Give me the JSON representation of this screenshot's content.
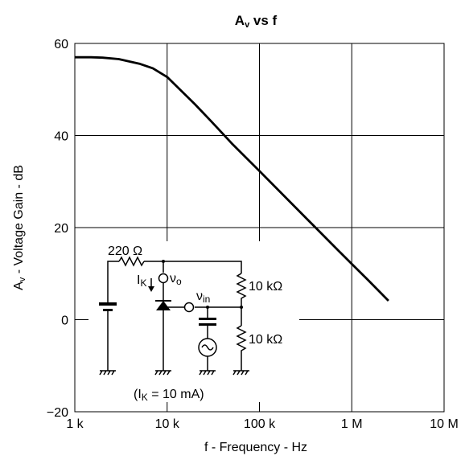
{
  "chart_data": {
    "type": "line",
    "title": "Av vs f",
    "xlabel": "f - Frequency - Hz",
    "ylabel": "Av - Voltage Gain - dB",
    "x_scale": "log",
    "xlim": [
      1000,
      10000000
    ],
    "ylim": [
      -20,
      60
    ],
    "x_ticks": [
      1000,
      10000,
      100000,
      1000000,
      10000000
    ],
    "x_tick_labels": [
      "1 k",
      "10 k",
      "100 k",
      "1 M",
      "10 M"
    ],
    "y_ticks": [
      60,
      40,
      20,
      0,
      -20
    ],
    "y_tick_labels": [
      "60",
      "40",
      "20",
      "0",
      "−20"
    ],
    "grid": true,
    "series": [
      {
        "x": [
          1000,
          1500,
          2000,
          3000,
          5000,
          7000,
          10000,
          20000,
          30000,
          50000,
          100000,
          200000,
          400000,
          700000,
          1000000,
          1500000,
          2500000
        ],
        "values": [
          57,
          57,
          56.9,
          56.6,
          55.6,
          54.6,
          52.7,
          46.8,
          43.1,
          38.3,
          32.3,
          26.2,
          20.1,
          15.2,
          12.1,
          8.6,
          4.1
        ]
      }
    ]
  },
  "inset": {
    "resistor_top": "220 Ω",
    "current_label": "I",
    "current_sub": "K",
    "vout_label": "ν",
    "vout_sub": "o",
    "vin_label": "ν",
    "vin_sub": "in",
    "res_upper": "10 kΩ",
    "res_lower": "10 kΩ",
    "condition_open": "(I",
    "condition_sub": "K",
    "condition_rest": " = 10 mA)"
  }
}
